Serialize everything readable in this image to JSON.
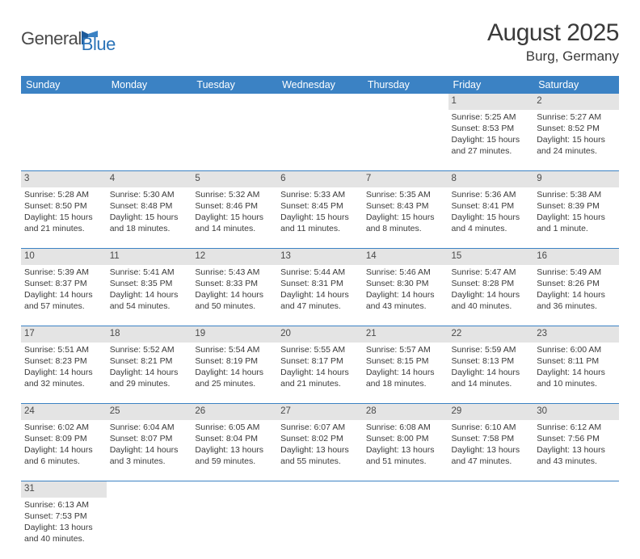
{
  "logo": {
    "text1": "General",
    "text2": "Blue"
  },
  "title": "August 2025",
  "location": "Burg, Germany",
  "colors": {
    "header_bg": "#3b82c4",
    "header_fg": "#ffffff",
    "daynum_bg": "#e4e4e4",
    "row_border": "#3b82c4",
    "text": "#3a3a3a",
    "logo_gray": "#4a4a4a",
    "logo_blue": "#2a73b8"
  },
  "weekdays": [
    "Sunday",
    "Monday",
    "Tuesday",
    "Wednesday",
    "Thursday",
    "Friday",
    "Saturday"
  ],
  "weeks": [
    [
      null,
      null,
      null,
      null,
      null,
      {
        "n": "1",
        "sr": "Sunrise: 5:25 AM",
        "ss": "Sunset: 8:53 PM",
        "d1": "Daylight: 15 hours",
        "d2": "and 27 minutes."
      },
      {
        "n": "2",
        "sr": "Sunrise: 5:27 AM",
        "ss": "Sunset: 8:52 PM",
        "d1": "Daylight: 15 hours",
        "d2": "and 24 minutes."
      }
    ],
    [
      {
        "n": "3",
        "sr": "Sunrise: 5:28 AM",
        "ss": "Sunset: 8:50 PM",
        "d1": "Daylight: 15 hours",
        "d2": "and 21 minutes."
      },
      {
        "n": "4",
        "sr": "Sunrise: 5:30 AM",
        "ss": "Sunset: 8:48 PM",
        "d1": "Daylight: 15 hours",
        "d2": "and 18 minutes."
      },
      {
        "n": "5",
        "sr": "Sunrise: 5:32 AM",
        "ss": "Sunset: 8:46 PM",
        "d1": "Daylight: 15 hours",
        "d2": "and 14 minutes."
      },
      {
        "n": "6",
        "sr": "Sunrise: 5:33 AM",
        "ss": "Sunset: 8:45 PM",
        "d1": "Daylight: 15 hours",
        "d2": "and 11 minutes."
      },
      {
        "n": "7",
        "sr": "Sunrise: 5:35 AM",
        "ss": "Sunset: 8:43 PM",
        "d1": "Daylight: 15 hours",
        "d2": "and 8 minutes."
      },
      {
        "n": "8",
        "sr": "Sunrise: 5:36 AM",
        "ss": "Sunset: 8:41 PM",
        "d1": "Daylight: 15 hours",
        "d2": "and 4 minutes."
      },
      {
        "n": "9",
        "sr": "Sunrise: 5:38 AM",
        "ss": "Sunset: 8:39 PM",
        "d1": "Daylight: 15 hours",
        "d2": "and 1 minute."
      }
    ],
    [
      {
        "n": "10",
        "sr": "Sunrise: 5:39 AM",
        "ss": "Sunset: 8:37 PM",
        "d1": "Daylight: 14 hours",
        "d2": "and 57 minutes."
      },
      {
        "n": "11",
        "sr": "Sunrise: 5:41 AM",
        "ss": "Sunset: 8:35 PM",
        "d1": "Daylight: 14 hours",
        "d2": "and 54 minutes."
      },
      {
        "n": "12",
        "sr": "Sunrise: 5:43 AM",
        "ss": "Sunset: 8:33 PM",
        "d1": "Daylight: 14 hours",
        "d2": "and 50 minutes."
      },
      {
        "n": "13",
        "sr": "Sunrise: 5:44 AM",
        "ss": "Sunset: 8:31 PM",
        "d1": "Daylight: 14 hours",
        "d2": "and 47 minutes."
      },
      {
        "n": "14",
        "sr": "Sunrise: 5:46 AM",
        "ss": "Sunset: 8:30 PM",
        "d1": "Daylight: 14 hours",
        "d2": "and 43 minutes."
      },
      {
        "n": "15",
        "sr": "Sunrise: 5:47 AM",
        "ss": "Sunset: 8:28 PM",
        "d1": "Daylight: 14 hours",
        "d2": "and 40 minutes."
      },
      {
        "n": "16",
        "sr": "Sunrise: 5:49 AM",
        "ss": "Sunset: 8:26 PM",
        "d1": "Daylight: 14 hours",
        "d2": "and 36 minutes."
      }
    ],
    [
      {
        "n": "17",
        "sr": "Sunrise: 5:51 AM",
        "ss": "Sunset: 8:23 PM",
        "d1": "Daylight: 14 hours",
        "d2": "and 32 minutes."
      },
      {
        "n": "18",
        "sr": "Sunrise: 5:52 AM",
        "ss": "Sunset: 8:21 PM",
        "d1": "Daylight: 14 hours",
        "d2": "and 29 minutes."
      },
      {
        "n": "19",
        "sr": "Sunrise: 5:54 AM",
        "ss": "Sunset: 8:19 PM",
        "d1": "Daylight: 14 hours",
        "d2": "and 25 minutes."
      },
      {
        "n": "20",
        "sr": "Sunrise: 5:55 AM",
        "ss": "Sunset: 8:17 PM",
        "d1": "Daylight: 14 hours",
        "d2": "and 21 minutes."
      },
      {
        "n": "21",
        "sr": "Sunrise: 5:57 AM",
        "ss": "Sunset: 8:15 PM",
        "d1": "Daylight: 14 hours",
        "d2": "and 18 minutes."
      },
      {
        "n": "22",
        "sr": "Sunrise: 5:59 AM",
        "ss": "Sunset: 8:13 PM",
        "d1": "Daylight: 14 hours",
        "d2": "and 14 minutes."
      },
      {
        "n": "23",
        "sr": "Sunrise: 6:00 AM",
        "ss": "Sunset: 8:11 PM",
        "d1": "Daylight: 14 hours",
        "d2": "and 10 minutes."
      }
    ],
    [
      {
        "n": "24",
        "sr": "Sunrise: 6:02 AM",
        "ss": "Sunset: 8:09 PM",
        "d1": "Daylight: 14 hours",
        "d2": "and 6 minutes."
      },
      {
        "n": "25",
        "sr": "Sunrise: 6:04 AM",
        "ss": "Sunset: 8:07 PM",
        "d1": "Daylight: 14 hours",
        "d2": "and 3 minutes."
      },
      {
        "n": "26",
        "sr": "Sunrise: 6:05 AM",
        "ss": "Sunset: 8:04 PM",
        "d1": "Daylight: 13 hours",
        "d2": "and 59 minutes."
      },
      {
        "n": "27",
        "sr": "Sunrise: 6:07 AM",
        "ss": "Sunset: 8:02 PM",
        "d1": "Daylight: 13 hours",
        "d2": "and 55 minutes."
      },
      {
        "n": "28",
        "sr": "Sunrise: 6:08 AM",
        "ss": "Sunset: 8:00 PM",
        "d1": "Daylight: 13 hours",
        "d2": "and 51 minutes."
      },
      {
        "n": "29",
        "sr": "Sunrise: 6:10 AM",
        "ss": "Sunset: 7:58 PM",
        "d1": "Daylight: 13 hours",
        "d2": "and 47 minutes."
      },
      {
        "n": "30",
        "sr": "Sunrise: 6:12 AM",
        "ss": "Sunset: 7:56 PM",
        "d1": "Daylight: 13 hours",
        "d2": "and 43 minutes."
      }
    ],
    [
      {
        "n": "31",
        "sr": "Sunrise: 6:13 AM",
        "ss": "Sunset: 7:53 PM",
        "d1": "Daylight: 13 hours",
        "d2": "and 40 minutes."
      },
      null,
      null,
      null,
      null,
      null,
      null
    ]
  ]
}
